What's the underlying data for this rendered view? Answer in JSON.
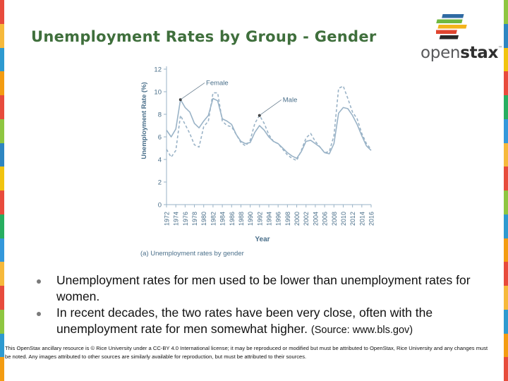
{
  "slide": {
    "title": "Unemployment Rates by Group - Gender",
    "brand": {
      "logo_text_light": "open",
      "logo_text_bold": "stax",
      "logo_tm": "™"
    },
    "bullets": [
      {
        "text": "Unemployment rates for men used to be lower than unemployment rates for women."
      },
      {
        "text": "In recent decades, the two rates have been very close, often with the unemployment rate for men somewhat higher.",
        "source": "(Source: www.bls.gov)"
      }
    ],
    "license": "This OpenStax ancillary resource is © Rice University under a CC-BY 4.0 International license; it may be reproduced or modified but must be attributed to OpenStax, Rice University and any changes must be noted.  Any images attributed to other sources are similarly available for reproduction, but must be attributed to their sources.",
    "colors": {
      "title": "#3f6f3c",
      "stripe": [
        "#e84b3c",
        "#f6b93b",
        "#2e9ad0",
        "#f39c12",
        "#e74c3c",
        "#8ec641",
        "#2e86c1",
        "#f1c40f",
        "#e84b3c",
        "#27ae60",
        "#3498db",
        "#f6b93b",
        "#e74c3c",
        "#8ec641",
        "#2e9ad0",
        "#f39c12"
      ],
      "logo_bars": [
        "#2f6aa3",
        "#6fb83f",
        "#f3b41b",
        "#e0452f",
        "#2a2a2a"
      ]
    }
  },
  "chart_data": {
    "type": "line",
    "caption": "(a) Unemployment rates by gender",
    "xlabel": "Year",
    "ylabel": "Unemployment Rate (%)",
    "ylim": [
      0,
      12
    ],
    "yticks": [
      0,
      2,
      4,
      6,
      8,
      10,
      12
    ],
    "xlim": [
      1972,
      2016
    ],
    "xticks": [
      1972,
      1974,
      1976,
      1978,
      1980,
      1982,
      1984,
      1986,
      1988,
      1990,
      1992,
      1994,
      1996,
      1998,
      2000,
      2002,
      2004,
      2006,
      2008,
      2010,
      2012,
      2014,
      2016
    ],
    "grid": false,
    "annotations": [
      {
        "text": "Female",
        "series": "Female",
        "x": 1975,
        "y": 9.3
      },
      {
        "text": "Male",
        "series": "Male",
        "x": 1992,
        "y": 7.9
      }
    ],
    "series": [
      {
        "name": "Female",
        "style": "solid",
        "color": "#9ab3c7",
        "x": [
          1972,
          1973,
          1974,
          1975,
          1976,
          1977,
          1978,
          1979,
          1980,
          1981,
          1982,
          1983,
          1984,
          1985,
          1986,
          1987,
          1988,
          1989,
          1990,
          1991,
          1992,
          1993,
          1994,
          1995,
          1996,
          1997,
          1998,
          1999,
          2000,
          2001,
          2002,
          2003,
          2004,
          2005,
          2006,
          2007,
          2008,
          2009,
          2010,
          2011,
          2012,
          2013,
          2014,
          2015,
          2016
        ],
        "values": [
          6.6,
          6.0,
          6.7,
          9.3,
          8.6,
          8.2,
          7.2,
          6.8,
          7.4,
          7.9,
          9.4,
          9.2,
          7.6,
          7.4,
          7.1,
          6.2,
          5.6,
          5.4,
          5.5,
          6.4,
          7.0,
          6.6,
          6.0,
          5.6,
          5.4,
          5.0,
          4.6,
          4.3,
          4.1,
          4.7,
          5.6,
          5.7,
          5.4,
          5.1,
          4.6,
          4.5,
          5.4,
          8.1,
          8.6,
          8.5,
          7.9,
          7.1,
          6.1,
          5.2,
          4.8
        ]
      },
      {
        "name": "Male",
        "style": "dashed",
        "color": "#9ab3c7",
        "x": [
          1972,
          1973,
          1974,
          1975,
          1976,
          1977,
          1978,
          1979,
          1980,
          1981,
          1982,
          1983,
          1984,
          1985,
          1986,
          1987,
          1988,
          1989,
          1990,
          1991,
          1992,
          1993,
          1994,
          1995,
          1996,
          1997,
          1998,
          1999,
          2000,
          2001,
          2002,
          2003,
          2004,
          2005,
          2006,
          2007,
          2008,
          2009,
          2010,
          2011,
          2012,
          2013,
          2014,
          2015,
          2016
        ],
        "values": [
          4.9,
          4.2,
          4.8,
          7.9,
          7.1,
          6.3,
          5.3,
          5.1,
          6.9,
          7.4,
          9.9,
          9.9,
          7.4,
          7.0,
          6.9,
          6.2,
          5.5,
          5.2,
          5.7,
          7.2,
          7.9,
          7.2,
          6.2,
          5.6,
          5.4,
          4.9,
          4.4,
          4.1,
          3.9,
          4.8,
          5.9,
          6.3,
          5.6,
          5.1,
          4.6,
          4.7,
          6.1,
          10.3,
          10.5,
          9.4,
          8.2,
          7.6,
          6.3,
          5.4,
          4.9
        ]
      }
    ]
  }
}
